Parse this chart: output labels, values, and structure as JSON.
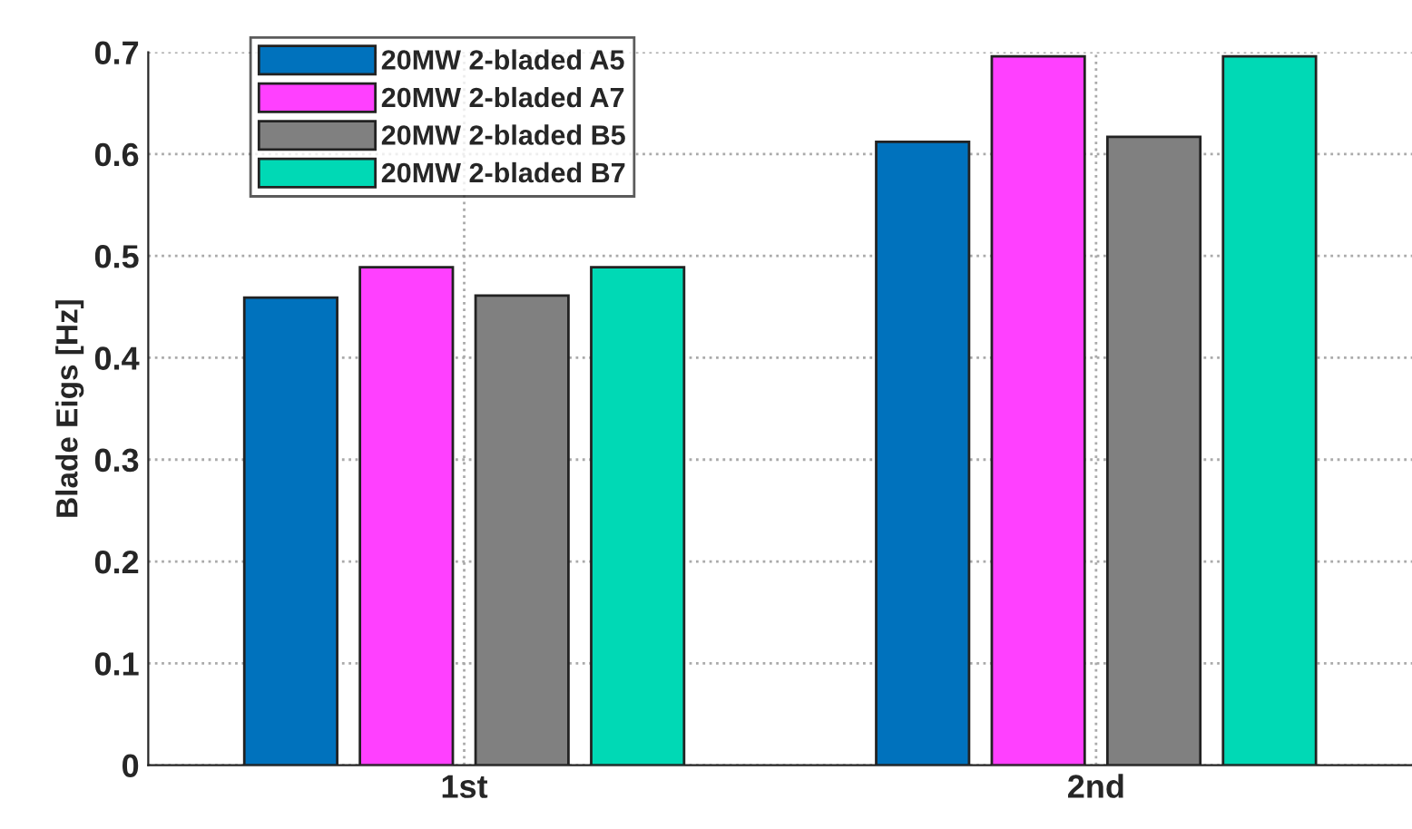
{
  "chart_data": {
    "type": "bar",
    "ylabel": "Blade Eigs [Hz]",
    "categories": [
      "1st",
      "2nd"
    ],
    "series": [
      {
        "name": "20MW 2-bladed A5",
        "color": "#0072bd",
        "values": [
          0.459,
          0.612
        ]
      },
      {
        "name": "20MW 2-bladed A7",
        "color": "#ff40ff",
        "values": [
          0.489,
          0.696
        ]
      },
      {
        "name": "20MW 2-bladed B5",
        "color": "#808080",
        "values": [
          0.461,
          0.617
        ]
      },
      {
        "name": "20MW 2-bladed B7",
        "color": "#00d9b5",
        "values": [
          0.489,
          0.696
        ]
      }
    ],
    "ylim": [
      0,
      0.7
    ],
    "yticks": [
      0,
      0.1,
      0.2,
      0.3,
      0.4,
      0.5,
      0.6,
      0.7
    ],
    "grid": true,
    "legend": "top left"
  }
}
